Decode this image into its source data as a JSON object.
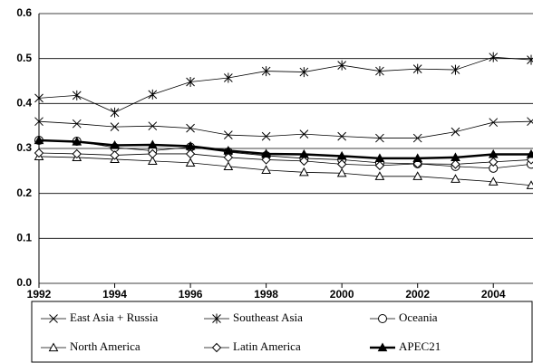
{
  "chart_data": {
    "type": "line",
    "x": [
      1992,
      1993,
      1994,
      1995,
      1996,
      1997,
      1998,
      1999,
      2000,
      2001,
      2002,
      2003,
      2004,
      2005
    ],
    "xlim": [
      1992,
      2005
    ],
    "xticks": [
      1992,
      1994,
      1996,
      1998,
      2000,
      2002,
      2004
    ],
    "ylim": [
      0,
      0.6
    ],
    "yticks": [
      {
        "value": 0,
        "label": "0.0"
      },
      0.1,
      0.2,
      0.3,
      0.4,
      0.5,
      0.6
    ],
    "grid": true,
    "legend": "bottom",
    "series": [
      {
        "name": "East Asia + Russia",
        "color": "#000000",
        "marker": "x",
        "line_width": 0.8,
        "values": [
          0.36,
          0.355,
          0.348,
          0.35,
          0.345,
          0.33,
          0.327,
          0.332,
          0.327,
          0.323,
          0.323,
          0.337,
          0.358,
          0.36
        ]
      },
      {
        "name": "Southeast Asia",
        "color": "#000000",
        "marker": "star",
        "line_width": 0.8,
        "values": [
          0.412,
          0.418,
          0.38,
          0.42,
          0.448,
          0.457,
          0.472,
          0.47,
          0.485,
          0.472,
          0.477,
          0.475,
          0.503,
          0.497
        ]
      },
      {
        "name": "Oceania",
        "color": "#000000",
        "marker": "circle",
        "line_width": 0.8,
        "values": [
          0.318,
          0.316,
          0.302,
          0.295,
          0.303,
          0.292,
          0.284,
          0.278,
          0.275,
          0.268,
          0.266,
          0.26,
          0.256,
          0.265
        ]
      },
      {
        "name": "North America",
        "color": "#000000",
        "marker": "triangle",
        "line_width": 0.8,
        "values": [
          0.282,
          0.28,
          0.276,
          0.272,
          0.268,
          0.26,
          0.252,
          0.247,
          0.245,
          0.238,
          0.238,
          0.232,
          0.226,
          0.218
        ]
      },
      {
        "name": "Latin America",
        "color": "#000000",
        "marker": "diamond",
        "line_width": 0.8,
        "values": [
          0.29,
          0.288,
          0.285,
          0.288,
          0.288,
          0.28,
          0.275,
          0.272,
          0.265,
          0.262,
          0.266,
          0.265,
          0.27,
          0.275
        ]
      },
      {
        "name": "APEC21",
        "color": "#000000",
        "marker": "triangle-filled",
        "line_width": 2.5,
        "values": [
          0.318,
          0.315,
          0.307,
          0.308,
          0.305,
          0.295,
          0.288,
          0.287,
          0.283,
          0.278,
          0.278,
          0.28,
          0.287,
          0.287
        ]
      }
    ]
  }
}
